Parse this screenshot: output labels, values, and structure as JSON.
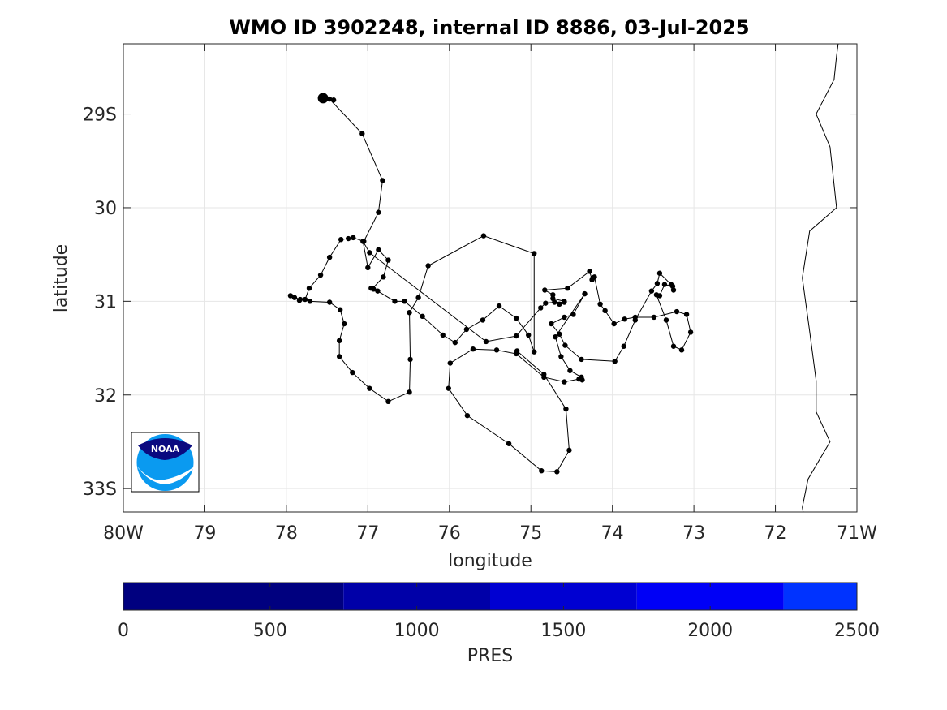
{
  "title": "WMO ID 3902248, internal ID 8886, 03-Jul-2025",
  "axes": {
    "xlabel": "longitude",
    "ylabel": "latitude",
    "xlim": [
      -80,
      -71
    ],
    "ylim": [
      -33.25,
      -28.25
    ],
    "xticks": [
      {
        "value": -80,
        "label": "80W"
      },
      {
        "value": -79,
        "label": "79"
      },
      {
        "value": -78,
        "label": "78"
      },
      {
        "value": -77,
        "label": "77"
      },
      {
        "value": -76,
        "label": "76"
      },
      {
        "value": -75,
        "label": "75"
      },
      {
        "value": -74,
        "label": "74"
      },
      {
        "value": -73,
        "label": "73"
      },
      {
        "value": -72,
        "label": "72"
      },
      {
        "value": -71,
        "label": "71W"
      }
    ],
    "yticks": [
      {
        "value": -29,
        "label": "29S"
      },
      {
        "value": -30,
        "label": "30"
      },
      {
        "value": -31,
        "label": "31"
      },
      {
        "value": -32,
        "label": "32"
      },
      {
        "value": -33,
        "label": "33S"
      }
    ],
    "grid": true
  },
  "colorbar": {
    "label": "PRES",
    "ticks": [
      "0",
      "500",
      "1000",
      "1500",
      "2000",
      "2500"
    ],
    "tick_values": [
      0,
      500,
      1000,
      1500,
      2000,
      2500
    ],
    "range": [
      0,
      2500
    ],
    "segments": [
      {
        "from": 0,
        "to": 750,
        "color": "#00007f"
      },
      {
        "from": 750,
        "to": 1250,
        "color": "#0000a8"
      },
      {
        "from": 1250,
        "to": 1750,
        "color": "#0000d2"
      },
      {
        "from": 1750,
        "to": 2250,
        "color": "#0000f6"
      },
      {
        "from": 2250,
        "to": 2500,
        "color": "#0033ff"
      }
    ]
  },
  "logo": {
    "text": "NOAA",
    "colors": {
      "dark": "#0a0a80",
      "light": "#0a9af0"
    }
  },
  "chart_data": {
    "type": "scatter",
    "series": [
      {
        "role": "float trajectory",
        "color": "#000000",
        "latest_position": [
          -77.55,
          -28.83
        ],
        "points": [
          [
            -77.55,
            -28.83
          ],
          [
            -77.42,
            -28.85
          ],
          [
            -77.47,
            -28.84
          ],
          [
            -77.07,
            -29.21
          ],
          [
            -76.82,
            -29.71
          ],
          [
            -76.87,
            -30.05
          ],
          [
            -77.05,
            -30.36
          ],
          [
            -77.18,
            -30.32
          ],
          [
            -77.24,
            -30.33
          ],
          [
            -77.33,
            -30.34
          ],
          [
            -77.47,
            -30.53
          ],
          [
            -77.58,
            -30.72
          ],
          [
            -77.72,
            -30.86
          ],
          [
            -77.77,
            -30.98
          ],
          [
            -77.84,
            -30.99
          ],
          [
            -77.9,
            -30.96
          ],
          [
            -77.95,
            -30.94
          ],
          [
            -77.83,
            -30.98
          ],
          [
            -77.71,
            -31.0
          ],
          [
            -77.47,
            -31.01
          ],
          [
            -77.34,
            -31.09
          ],
          [
            -77.29,
            -31.24
          ],
          [
            -77.35,
            -31.42
          ],
          [
            -77.35,
            -31.59
          ],
          [
            -77.19,
            -31.76
          ],
          [
            -76.98,
            -31.93
          ],
          [
            -76.75,
            -32.07
          ],
          [
            -76.49,
            -31.97
          ],
          [
            -76.48,
            -31.62
          ],
          [
            -76.49,
            -31.12
          ],
          [
            -76.38,
            -30.96
          ],
          [
            -76.26,
            -30.62
          ],
          [
            -75.58,
            -30.3
          ],
          [
            -74.96,
            -30.49
          ],
          [
            -74.96,
            -31.54
          ],
          [
            -75.03,
            -31.36
          ],
          [
            -75.18,
            -31.18
          ],
          [
            -75.39,
            -31.05
          ],
          [
            -75.59,
            -31.2
          ],
          [
            -75.79,
            -31.3
          ],
          [
            -75.93,
            -31.44
          ],
          [
            -76.08,
            -31.36
          ],
          [
            -76.33,
            -31.16
          ],
          [
            -76.55,
            -31.0
          ],
          [
            -76.67,
            -31.0
          ],
          [
            -76.88,
            -30.89
          ],
          [
            -76.93,
            -30.87
          ],
          [
            -76.96,
            -30.86
          ],
          [
            -76.94,
            -30.86
          ],
          [
            -76.81,
            -30.74
          ],
          [
            -76.75,
            -30.56
          ],
          [
            -76.87,
            -30.45
          ],
          [
            -77.0,
            -30.64
          ],
          [
            -77.06,
            -30.36
          ],
          [
            -76.98,
            -30.48
          ],
          [
            -75.55,
            -31.43
          ],
          [
            -75.18,
            -31.37
          ],
          [
            -74.88,
            -31.07
          ],
          [
            -74.82,
            -31.02
          ],
          [
            -74.71,
            -31.01
          ],
          [
            -74.59,
            -31.01
          ],
          [
            -74.65,
            -31.03
          ],
          [
            -74.59,
            -31.0
          ],
          [
            -74.73,
            -30.97
          ],
          [
            -74.73,
            -30.93
          ],
          [
            -74.83,
            -30.88
          ],
          [
            -74.55,
            -30.86
          ],
          [
            -74.28,
            -30.68
          ],
          [
            -74.25,
            -30.77
          ],
          [
            -74.24,
            -30.75
          ],
          [
            -74.22,
            -30.74
          ],
          [
            -74.15,
            -31.03
          ],
          [
            -74.09,
            -31.1
          ],
          [
            -73.98,
            -31.24
          ],
          [
            -73.85,
            -31.19
          ],
          [
            -73.72,
            -31.17
          ],
          [
            -73.49,
            -31.17
          ],
          [
            -73.21,
            -31.11
          ],
          [
            -73.09,
            -31.14
          ],
          [
            -73.04,
            -31.33
          ],
          [
            -73.15,
            -31.52
          ],
          [
            -73.25,
            -31.48
          ],
          [
            -73.34,
            -31.2
          ],
          [
            -73.46,
            -30.93
          ],
          [
            -73.42,
            -30.94
          ],
          [
            -73.36,
            -30.82
          ],
          [
            -73.26,
            -30.84
          ],
          [
            -73.25,
            -30.88
          ],
          [
            -73.28,
            -30.82
          ],
          [
            -73.42,
            -30.7
          ],
          [
            -73.45,
            -30.81
          ],
          [
            -73.52,
            -30.89
          ],
          [
            -73.72,
            -31.2
          ],
          [
            -73.86,
            -31.48
          ],
          [
            -73.97,
            -31.64
          ],
          [
            -74.38,
            -31.62
          ],
          [
            -74.58,
            -31.47
          ],
          [
            -74.65,
            -31.35
          ],
          [
            -74.75,
            -31.24
          ],
          [
            -74.59,
            -31.17
          ],
          [
            -74.48,
            -31.14
          ],
          [
            -74.34,
            -30.92
          ],
          [
            -74.7,
            -31.38
          ],
          [
            -74.63,
            -31.59
          ],
          [
            -74.52,
            -31.74
          ],
          [
            -74.38,
            -31.81
          ],
          [
            -74.37,
            -31.84
          ],
          [
            -74.41,
            -31.83
          ],
          [
            -74.59,
            -31.86
          ],
          [
            -74.84,
            -31.81
          ],
          [
            -75.18,
            -31.56
          ],
          [
            -75.42,
            -31.52
          ],
          [
            -75.71,
            -31.51
          ],
          [
            -75.99,
            -31.66
          ],
          [
            -76.01,
            -31.93
          ],
          [
            -75.78,
            -32.22
          ],
          [
            -75.27,
            -32.52
          ],
          [
            -74.87,
            -32.81
          ],
          [
            -74.68,
            -32.82
          ],
          [
            -74.53,
            -32.59
          ],
          [
            -74.57,
            -32.15
          ],
          [
            -74.84,
            -31.78
          ],
          [
            -75.17,
            -31.53
          ]
        ]
      },
      {
        "role": "coastline",
        "color": "#000000",
        "points": [
          [
            -71.23,
            -28.25
          ],
          [
            -71.25,
            -28.38
          ],
          [
            -71.28,
            -28.63
          ],
          [
            -71.5,
            -29.0
          ],
          [
            -71.33,
            -29.35
          ],
          [
            -71.25,
            -30.0
          ],
          [
            -71.58,
            -30.25
          ],
          [
            -71.67,
            -30.75
          ],
          [
            -71.58,
            -31.32
          ],
          [
            -71.5,
            -31.85
          ],
          [
            -71.5,
            -32.18
          ],
          [
            -71.33,
            -32.5
          ],
          [
            -71.6,
            -32.9
          ],
          [
            -71.67,
            -33.2
          ],
          [
            -71.66,
            -33.25
          ]
        ]
      }
    ]
  }
}
